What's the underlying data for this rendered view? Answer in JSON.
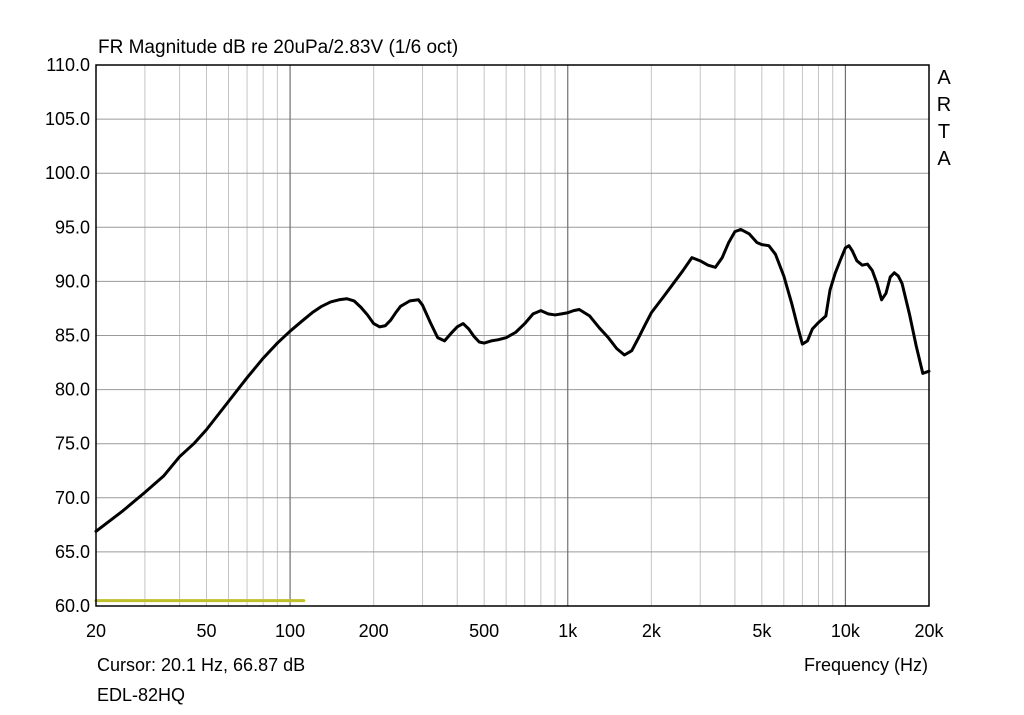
{
  "chart_data": {
    "type": "line",
    "title": "FR Magnitude dB re 20uPa/2.83V (1/6 oct)",
    "xlabel": "Frequency (Hz)",
    "ylabel": "",
    "xscale": "log",
    "xlim": [
      20,
      20000
    ],
    "ylim": [
      60,
      110
    ],
    "grid": true,
    "y_ticks": [
      "110.0",
      "105.0",
      "100.0",
      "95.0",
      "90.0",
      "85.0",
      "80.0",
      "75.0",
      "70.0",
      "65.0",
      "60.0"
    ],
    "x_ticks": [
      {
        "value": 20,
        "label": "20"
      },
      {
        "value": 50,
        "label": "50"
      },
      {
        "value": 100,
        "label": "100"
      },
      {
        "value": 200,
        "label": "200"
      },
      {
        "value": 500,
        "label": "500"
      },
      {
        "value": 1000,
        "label": "1k"
      },
      {
        "value": 2000,
        "label": "2k"
      },
      {
        "value": 5000,
        "label": "5k"
      },
      {
        "value": 10000,
        "label": "10k"
      },
      {
        "value": 20000,
        "label": "20k"
      }
    ],
    "series": [
      {
        "color": "#000000",
        "x": [
          20,
          25,
          30,
          35,
          40,
          45,
          50,
          60,
          70,
          80,
          90,
          100,
          110,
          120,
          130,
          140,
          150,
          160,
          170,
          180,
          190,
          200,
          210,
          220,
          230,
          240,
          250,
          270,
          290,
          300,
          320,
          340,
          360,
          380,
          400,
          420,
          440,
          460,
          480,
          500,
          530,
          560,
          600,
          650,
          700,
          750,
          800,
          850,
          900,
          950,
          1000,
          1050,
          1100,
          1200,
          1300,
          1400,
          1500,
          1600,
          1700,
          1800,
          1900,
          2000,
          2200,
          2400,
          2600,
          2800,
          3000,
          3200,
          3400,
          3600,
          3800,
          4000,
          4200,
          4500,
          4800,
          5000,
          5300,
          5600,
          6000,
          6400,
          6700,
          7000,
          7300,
          7600,
          8000,
          8500,
          8800,
          9200,
          9600,
          10000,
          10300,
          10600,
          11000,
          11500,
          12000,
          12500,
          13000,
          13500,
          14000,
          14500,
          15000,
          15500,
          16000,
          17000,
          18000,
          19000,
          20000
        ],
        "y": [
          66.9,
          68.8,
          70.5,
          72.0,
          73.8,
          75.0,
          76.3,
          78.9,
          81.1,
          82.9,
          84.3,
          85.4,
          86.3,
          87.1,
          87.7,
          88.1,
          88.3,
          88.4,
          88.2,
          87.6,
          86.9,
          86.1,
          85.8,
          85.9,
          86.4,
          87.1,
          87.7,
          88.2,
          88.3,
          87.8,
          86.2,
          84.8,
          84.5,
          85.2,
          85.8,
          86.1,
          85.6,
          84.9,
          84.4,
          84.3,
          84.5,
          84.6,
          84.8,
          85.3,
          86.1,
          87.0,
          87.3,
          87.0,
          86.9,
          87.0,
          87.1,
          87.3,
          87.4,
          86.8,
          85.7,
          84.8,
          83.8,
          83.2,
          83.6,
          84.8,
          86.0,
          87.1,
          88.5,
          89.8,
          91.0,
          92.2,
          91.9,
          91.5,
          91.3,
          92.2,
          93.6,
          94.6,
          94.8,
          94.4,
          93.6,
          93.4,
          93.3,
          92.5,
          90.5,
          88.0,
          86.0,
          84.2,
          84.5,
          85.6,
          86.2,
          86.8,
          89.2,
          90.8,
          92.0,
          93.1,
          93.3,
          92.8,
          91.9,
          91.5,
          91.6,
          91.0,
          89.8,
          88.3,
          88.9,
          90.4,
          90.8,
          90.5,
          89.8,
          87.0,
          84.0,
          81.5,
          81.7
        ]
      },
      {
        "color": "#bfbf2a",
        "x": [
          20,
          112
        ],
        "y": [
          60.5,
          60.5
        ]
      }
    ],
    "cursor_text": "Cursor: 20.1 Hz, 66.87 dB",
    "device_name": "EDL-82HQ",
    "brand_letters": [
      "A",
      "R",
      "T",
      "A"
    ]
  }
}
